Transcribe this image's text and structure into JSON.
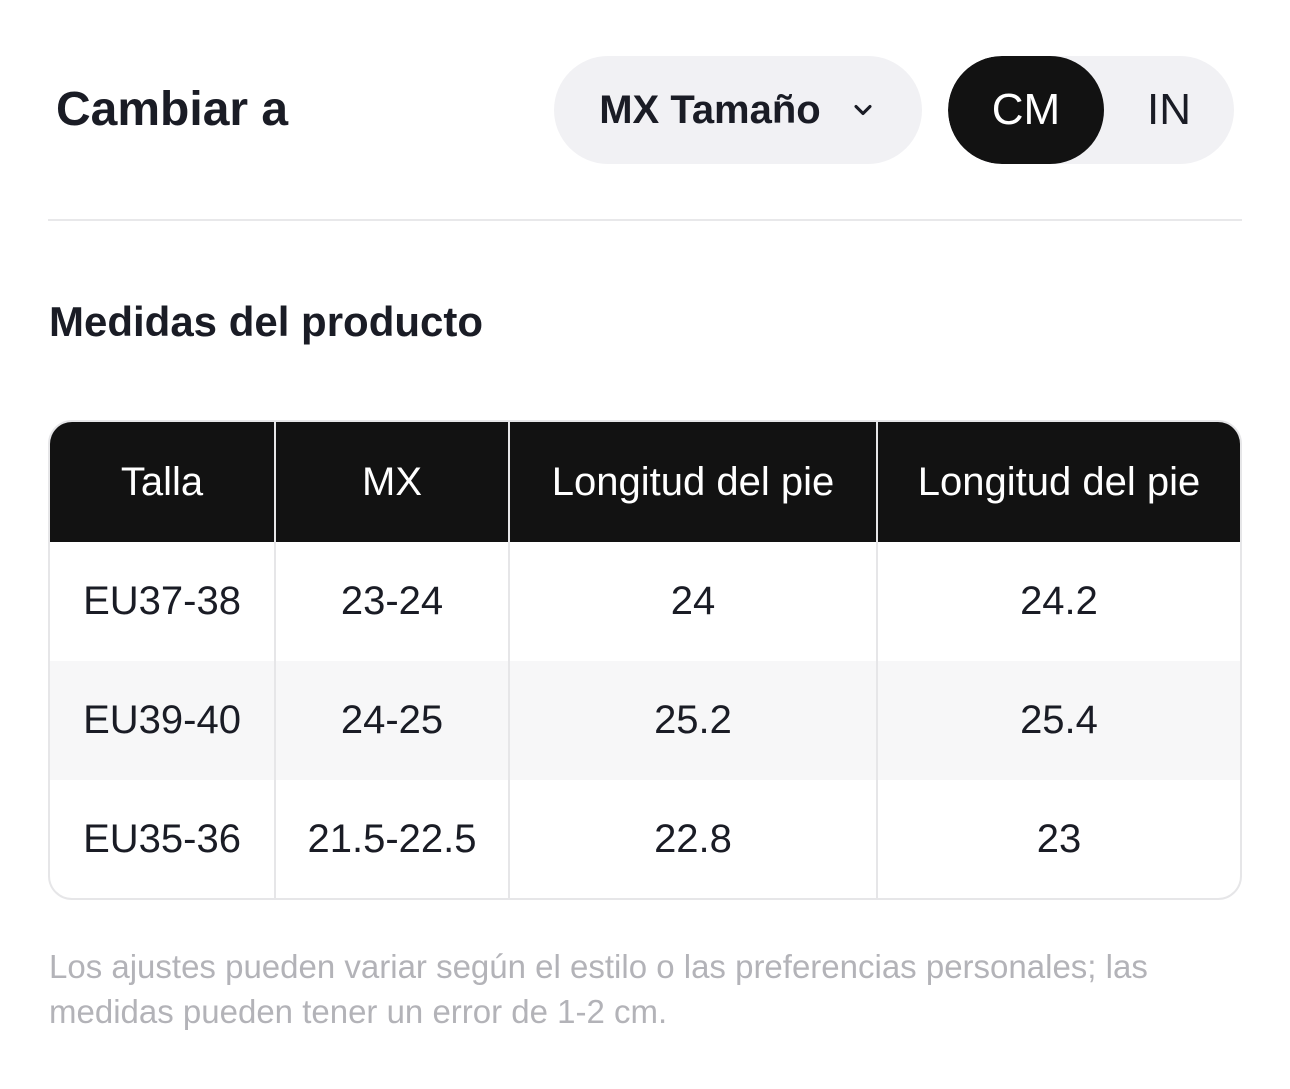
{
  "header": {
    "title": "Cambiar a",
    "size_select": {
      "label": "MX Tamaño"
    },
    "units": {
      "cm": "CM",
      "in": "IN",
      "selected": "CM"
    }
  },
  "section": {
    "title": "Medidas del producto"
  },
  "table": {
    "headers": [
      "Talla",
      "MX",
      "Longitud del pie",
      "Longitud del pie"
    ],
    "rows": [
      [
        "EU37-38",
        "23-24",
        "24",
        "24.2"
      ],
      [
        "EU39-40",
        "24-25",
        "25.2",
        "25.4"
      ],
      [
        "EU35-36",
        "21.5-22.5",
        "22.8",
        "23"
      ]
    ]
  },
  "note": "Los ajustes pueden variar según el estilo o las preferencias personales; las medidas pueden tener un error de 1-2 cm.",
  "colors": {
    "accent": "#121212",
    "pill_bg": "#f1f1f4",
    "note_text": "#b3b3b8"
  },
  "icons": {
    "select": "chevron-down-icon"
  }
}
